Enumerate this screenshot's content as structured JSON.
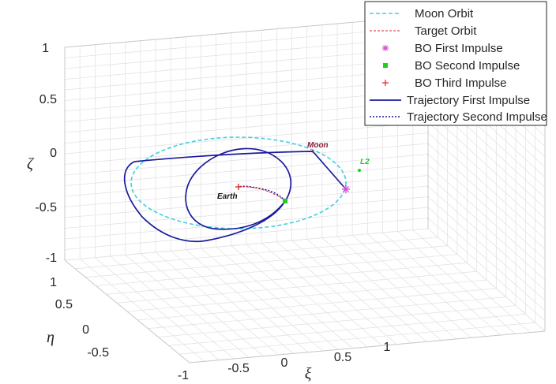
{
  "chart_data": {
    "type": "line",
    "subtype": "3d-trajectory",
    "title": "",
    "xlabel": "ξ",
    "ylabel": "η",
    "zlabel": "ζ",
    "x_ticks": [
      "-1",
      "-0.5",
      "0",
      "0.5",
      "1"
    ],
    "y_ticks": [
      "-0.5",
      "0",
      "0.5",
      "1"
    ],
    "z_ticks": [
      "-1",
      "-0.5",
      "0",
      "0.5",
      "1"
    ],
    "grid": true,
    "legend_position": "top-right",
    "legend": [
      {
        "label": "Moon Orbit",
        "color": "#3fd0e0",
        "style": "dashed"
      },
      {
        "label": "Target Orbit",
        "color": "#e02020",
        "style": "dashed"
      },
      {
        "label": "BO First Impulse",
        "color": "#d94bd9",
        "style": "marker-asterisk"
      },
      {
        "label": "BO Second Impulse",
        "color": "#22cc22",
        "style": "marker-square"
      },
      {
        "label": "BO Third Impulse",
        "color": "#e02020",
        "style": "marker-plus"
      },
      {
        "label": "Trajectory First Impulse",
        "color": "#1a1a9e",
        "style": "solid"
      },
      {
        "label": "Trajectory Second Impulse",
        "color": "#1a1a9e",
        "style": "dotted"
      }
    ],
    "annotations": [
      {
        "text": "Moon",
        "color": "#8b1a3a"
      },
      {
        "text": "L2",
        "color": "#22cc22"
      },
      {
        "text": "Earth",
        "color": "#111111"
      }
    ],
    "series": [
      {
        "name": "Moon Orbit",
        "kind": "circle",
        "center": [
          0,
          0,
          0
        ],
        "radius": 1.0
      },
      {
        "name": "Earth",
        "points": [
          [
            0,
            0,
            0
          ]
        ]
      },
      {
        "name": "L2",
        "points": [
          [
            1.16,
            0,
            0
          ]
        ]
      },
      {
        "name": "BO First Impulse",
        "points": [
          [
            0.68,
            -0.73,
            0.0
          ]
        ]
      },
      {
        "name": "BO Second Impulse",
        "points": [
          [
            -0.18,
            -0.39,
            0.0
          ]
        ]
      },
      {
        "name": "BO Third Impulse",
        "points": [
          [
            -0.01,
            0.0,
            0.0
          ]
        ]
      },
      {
        "name": "Trajectory First Impulse",
        "points": [
          [
            0.68,
            -0.73,
            0.0
          ],
          [
            0.45,
            -0.2,
            0.03
          ],
          [
            0.27,
            0.38,
            0.08
          ],
          [
            -0.4,
            0.92,
            0.1
          ],
          [
            -1.1,
            1.3,
            0.12
          ],
          [
            -1.3,
            0.5,
            0.06
          ],
          [
            -1.25,
            0.0,
            0.0
          ],
          [
            -1.1,
            -0.35,
            -0.02
          ],
          [
            -0.85,
            -0.55,
            -0.02
          ],
          [
            -0.55,
            -0.6,
            -0.01
          ],
          [
            -0.18,
            -0.39,
            0.0
          ]
        ]
      },
      {
        "name": "Trajectory Second Impulse",
        "points": [
          [
            -0.18,
            -0.39,
            0.0
          ],
          [
            -0.15,
            -0.25,
            0.0
          ],
          [
            -0.1,
            -0.12,
            0.0
          ],
          [
            -0.05,
            -0.04,
            0.0
          ],
          [
            -0.01,
            0.0,
            0.0
          ]
        ]
      },
      {
        "name": "Inner Loop",
        "points": [
          [
            -0.18,
            -0.39,
            0.0
          ],
          [
            -0.04,
            -0.05,
            0.0
          ],
          [
            0.0,
            0.3,
            0.0
          ],
          [
            -0.1,
            0.55,
            0.0
          ],
          [
            -0.35,
            0.6,
            0.0
          ],
          [
            -0.55,
            0.45,
            0.0
          ],
          [
            -0.6,
            0.15,
            0.0
          ],
          [
            -0.5,
            -0.2,
            0.0
          ],
          [
            -0.35,
            -0.4,
            0.0
          ],
          [
            -0.18,
            -0.39,
            0.0
          ]
        ]
      }
    ]
  }
}
